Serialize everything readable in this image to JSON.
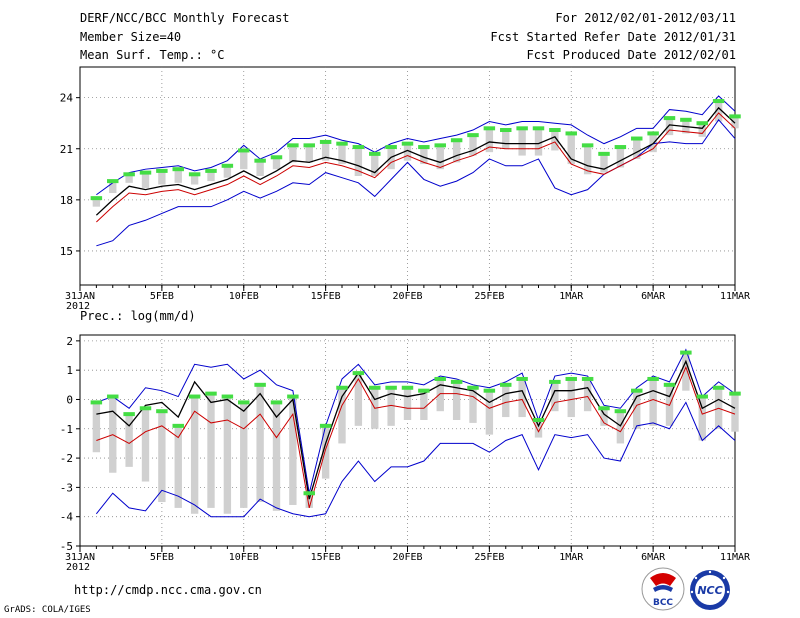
{
  "header": {
    "title": "DERF/NCC/BCC Monthly Forecast",
    "member_size": "Member Size=40",
    "variable": "Mean Surf. Temp.: °C",
    "period": "For 2012/02/01-2012/03/11",
    "fcst_started": "Fcst Started Refer Date 2012/01/31",
    "fcst_produced": "Fcst Produced Date 2012/02/01"
  },
  "footer": {
    "url": "http://cmdp.ncc.cma.gov.cn",
    "credit": "GrADS: COLA/IGES",
    "logo_bcc": "BCC",
    "logo_ncc": "NCC"
  },
  "colors": {
    "mean": "#000000",
    "median": "#cc0000",
    "extreme": "#0000cc",
    "box": "#d0d0d0",
    "marker": "#44dd44"
  },
  "chart_data": [
    {
      "type": "line",
      "title": "Mean Surf. Temp.: °C",
      "xlabel": "",
      "ylabel": "°C",
      "x_start_label": "31JAN",
      "x_start_year": "2012",
      "x_ticks": [
        {
          "day": 0,
          "label": "31JAN"
        },
        {
          "day": 5,
          "label": "5FEB"
        },
        {
          "day": 10,
          "label": "10FEB"
        },
        {
          "day": 15,
          "label": "15FEB"
        },
        {
          "day": 20,
          "label": "20FEB"
        },
        {
          "day": 25,
          "label": "25FEB"
        },
        {
          "day": 30,
          "label": "1MAR"
        },
        {
          "day": 35,
          "label": "6MAR"
        },
        {
          "day": 40,
          "label": "11MAR"
        }
      ],
      "y_ticks": [
        15,
        18,
        21,
        24
      ],
      "ylim": [
        13,
        25.8
      ],
      "xlim": [
        0,
        40
      ],
      "days": [
        1,
        2,
        3,
        4,
        5,
        6,
        7,
        8,
        9,
        10,
        11,
        12,
        13,
        14,
        15,
        16,
        17,
        18,
        19,
        20,
        21,
        22,
        23,
        24,
        25,
        26,
        27,
        28,
        29,
        30,
        31,
        32,
        33,
        34,
        35,
        36,
        37,
        38,
        39,
        40
      ],
      "series": [
        {
          "name": "max",
          "values": [
            18.3,
            19.0,
            19.6,
            19.8,
            19.9,
            20.0,
            19.7,
            19.9,
            20.3,
            21.2,
            20.4,
            20.8,
            21.6,
            21.6,
            21.8,
            21.5,
            21.3,
            20.8,
            21.3,
            21.6,
            21.4,
            21.6,
            21.8,
            22.1,
            22.6,
            22.4,
            22.6,
            22.6,
            22.5,
            22.4,
            21.8,
            21.3,
            21.7,
            22.2,
            22.2,
            23.3,
            23.2,
            23.0,
            24.1,
            23.2
          ]
        },
        {
          "name": "box_top",
          "values": [
            18.1,
            19.1,
            19.5,
            19.6,
            19.7,
            19.8,
            19.5,
            19.7,
            20.0,
            20.9,
            20.3,
            20.5,
            21.2,
            21.2,
            21.4,
            21.3,
            21.1,
            20.7,
            21.1,
            21.3,
            21.1,
            21.2,
            21.5,
            21.8,
            22.2,
            22.1,
            22.2,
            22.2,
            22.1,
            21.9,
            21.2,
            20.7,
            21.1,
            21.6,
            21.9,
            22.8,
            22.7,
            22.5,
            23.8,
            22.9
          ]
        },
        {
          "name": "mean",
          "values": [
            17.1,
            18.0,
            18.8,
            18.6,
            18.8,
            18.9,
            18.6,
            18.9,
            19.2,
            19.7,
            19.2,
            19.7,
            20.3,
            20.2,
            20.5,
            20.3,
            20.0,
            19.6,
            20.5,
            20.9,
            20.5,
            20.2,
            20.6,
            20.9,
            21.4,
            21.3,
            21.3,
            21.3,
            21.7,
            20.4,
            20.0,
            19.8,
            20.3,
            20.8,
            21.3,
            22.4,
            22.3,
            22.2,
            23.4,
            22.5
          ]
        },
        {
          "name": "median",
          "values": [
            16.7,
            17.6,
            18.4,
            18.3,
            18.5,
            18.6,
            18.3,
            18.6,
            18.9,
            19.4,
            18.9,
            19.4,
            20.0,
            19.9,
            20.2,
            20.0,
            19.7,
            19.3,
            20.2,
            20.6,
            20.2,
            19.9,
            20.3,
            20.6,
            21.1,
            21.0,
            21.0,
            21.0,
            21.4,
            20.1,
            19.7,
            19.5,
            20.0,
            20.5,
            21.0,
            22.1,
            22.0,
            21.9,
            23.1,
            22.2
          ]
        },
        {
          "name": "box_bottom",
          "values": [
            17.6,
            18.4,
            19.0,
            18.7,
            18.9,
            19.0,
            18.9,
            19.1,
            19.3,
            19.8,
            19.4,
            19.8,
            20.2,
            20.2,
            20.3,
            20.1,
            19.4,
            19.4,
            19.8,
            20.3,
            20.1,
            19.8,
            20.2,
            20.6,
            20.8,
            21.0,
            20.6,
            20.6,
            20.9,
            20.1,
            19.5,
            19.6,
            19.9,
            20.4,
            20.8,
            21.8,
            21.9,
            21.7,
            22.6,
            22.2
          ]
        },
        {
          "name": "min",
          "values": [
            15.3,
            15.6,
            16.5,
            16.8,
            17.2,
            17.6,
            17.6,
            17.6,
            18.0,
            18.5,
            18.1,
            18.5,
            19.0,
            18.9,
            19.6,
            19.3,
            19.0,
            18.2,
            19.2,
            20.2,
            19.2,
            18.8,
            19.1,
            19.6,
            20.4,
            20.0,
            20.0,
            20.4,
            18.7,
            18.3,
            18.6,
            19.5,
            20.0,
            20.5,
            21.3,
            21.4,
            21.3,
            21.3,
            22.7,
            21.6
          ]
        }
      ]
    },
    {
      "type": "line",
      "title": "Prec.: log(mm/d)",
      "xlabel": "",
      "ylabel": "log(mm/d)",
      "x_start_label": "31JAN",
      "x_start_year": "2012",
      "x_ticks": [
        {
          "day": 0,
          "label": "31JAN"
        },
        {
          "day": 5,
          "label": "5FEB"
        },
        {
          "day": 10,
          "label": "10FEB"
        },
        {
          "day": 15,
          "label": "15FEB"
        },
        {
          "day": 20,
          "label": "20FEB"
        },
        {
          "day": 25,
          "label": "25FEB"
        },
        {
          "day": 30,
          "label": "1MAR"
        },
        {
          "day": 35,
          "label": "6MAR"
        },
        {
          "day": 40,
          "label": "11MAR"
        }
      ],
      "y_ticks": [
        -5,
        -4,
        -3,
        -2,
        -1,
        0,
        1,
        2
      ],
      "ylim": [
        -5,
        2.2
      ],
      "xlim": [
        0,
        40
      ],
      "days": [
        1,
        2,
        3,
        4,
        5,
        6,
        7,
        8,
        9,
        10,
        11,
        12,
        13,
        14,
        15,
        16,
        17,
        18,
        19,
        20,
        21,
        22,
        23,
        24,
        25,
        26,
        27,
        28,
        29,
        30,
        31,
        32,
        33,
        34,
        35,
        36,
        37,
        38,
        39,
        40
      ],
      "series": [
        {
          "name": "max",
          "values": [
            -0.1,
            0.1,
            -0.3,
            0.4,
            0.3,
            0.1,
            1.2,
            1.1,
            1.2,
            0.7,
            1.0,
            0.5,
            0.3,
            -3.2,
            -0.9,
            0.7,
            1.2,
            0.5,
            0.6,
            0.6,
            0.5,
            0.8,
            0.7,
            0.5,
            0.4,
            0.6,
            0.9,
            -0.7,
            0.8,
            0.9,
            0.8,
            -0.2,
            -0.3,
            0.4,
            0.8,
            0.6,
            1.7,
            0.1,
            0.6,
            0.2
          ]
        },
        {
          "name": "box_top",
          "values": [
            -0.1,
            0.1,
            -0.5,
            -0.3,
            -0.4,
            -0.9,
            0.1,
            0.2,
            0.1,
            -0.1,
            0.5,
            -0.1,
            0.1,
            -3.2,
            -0.9,
            0.4,
            0.9,
            0.4,
            0.4,
            0.4,
            0.3,
            0.7,
            0.6,
            0.4,
            0.3,
            0.5,
            0.7,
            -0.7,
            0.6,
            0.7,
            0.7,
            -0.3,
            -0.4,
            0.3,
            0.7,
            0.5,
            1.6,
            0.1,
            0.4,
            0.2
          ]
        },
        {
          "name": "mean",
          "values": [
            -0.5,
            -0.4,
            -0.9,
            -0.2,
            -0.1,
            -0.6,
            0.6,
            -0.1,
            0.0,
            -0.4,
            0.2,
            -0.6,
            0.0,
            -3.4,
            -1.5,
            0.1,
            0.9,
            0.0,
            0.2,
            0.1,
            0.2,
            0.5,
            0.4,
            0.3,
            -0.1,
            0.2,
            0.3,
            -0.9,
            0.3,
            0.3,
            0.4,
            -0.5,
            -0.9,
            0.1,
            0.3,
            0.1,
            1.3,
            -0.3,
            0.0,
            -0.3
          ]
        },
        {
          "name": "median",
          "values": [
            -1.4,
            -1.2,
            -1.5,
            -1.1,
            -0.9,
            -1.3,
            -0.4,
            -0.8,
            -0.7,
            -1.0,
            -0.5,
            -1.3,
            -0.5,
            -3.7,
            -1.7,
            -0.2,
            0.7,
            -0.3,
            -0.2,
            -0.3,
            -0.3,
            0.2,
            0.2,
            0.1,
            -0.3,
            -0.1,
            0.0,
            -1.1,
            -0.1,
            0.0,
            0.1,
            -0.8,
            -1.1,
            -0.2,
            0.0,
            -0.2,
            1.1,
            -0.5,
            -0.3,
            -0.5
          ]
        },
        {
          "name": "box_bottom",
          "values": [
            -1.8,
            -2.5,
            -2.3,
            -2.8,
            -3.5,
            -3.7,
            -3.9,
            -3.7,
            -3.9,
            -3.7,
            -3.5,
            -3.8,
            -3.6,
            -3.7,
            -2.7,
            -1.5,
            -0.9,
            -1.0,
            -0.9,
            -0.7,
            -0.7,
            -0.4,
            -0.7,
            -0.8,
            -1.2,
            -0.6,
            -0.6,
            -1.3,
            -0.4,
            -0.6,
            -0.4,
            -0.9,
            -1.5,
            -1.0,
            -0.9,
            -0.9,
            0.3,
            -1.4,
            -1.0,
            -1.1
          ]
        },
        {
          "name": "min",
          "values": [
            -3.9,
            -3.2,
            -3.7,
            -3.8,
            -3.1,
            -3.3,
            -3.6,
            -4.0,
            -4.0,
            -4.0,
            -3.4,
            -3.7,
            -3.9,
            -4.0,
            -3.9,
            -2.8,
            -2.1,
            -2.8,
            -2.3,
            -2.3,
            -2.1,
            -1.5,
            -1.5,
            -1.5,
            -1.8,
            -1.4,
            -1.2,
            -2.4,
            -1.2,
            -1.3,
            -1.2,
            -2.0,
            -2.1,
            -0.9,
            -0.8,
            -1.0,
            -0.1,
            -1.4,
            -0.9,
            -1.4
          ]
        }
      ]
    }
  ]
}
